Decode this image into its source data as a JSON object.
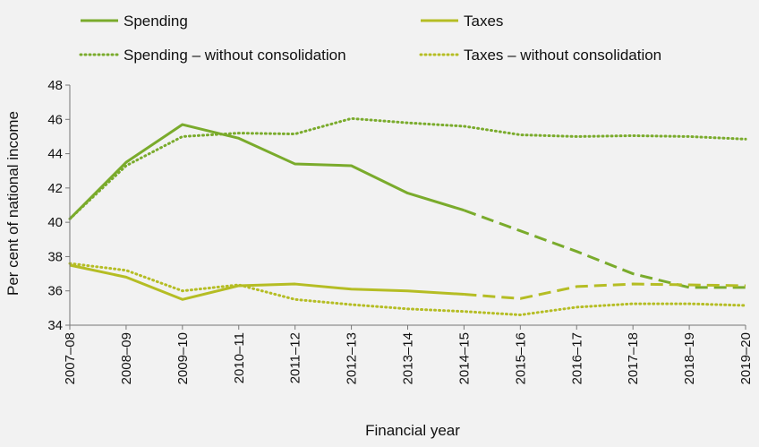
{
  "chart_data": {
    "type": "line",
    "title": "",
    "xlabel": "Financial year",
    "ylabel": "Per cent of national income",
    "ylim": [
      34,
      48
    ],
    "yticks": [
      "34",
      "36",
      "38",
      "40",
      "42",
      "44",
      "46",
      "48"
    ],
    "categories": [
      "2007–08",
      "2008–09",
      "2009–10",
      "2010–11",
      "2011–12",
      "2012–13",
      "2013–14",
      "2014–15",
      "2015–16",
      "2016–17",
      "2017–18",
      "2018–19",
      "2019–20"
    ],
    "grid": false,
    "legend_position": "top",
    "projection_start_index": 7,
    "series": [
      {
        "name": "Spending",
        "style": "solid-then-dashed",
        "color": "#7aab2c",
        "values": [
          40.2,
          43.5,
          45.7,
          44.9,
          43.4,
          43.3,
          41.7,
          40.7,
          39.5,
          38.3,
          37.0,
          36.2,
          36.2
        ]
      },
      {
        "name": "Taxes",
        "style": "solid-then-dashed",
        "color": "#b5bd24",
        "values": [
          37.5,
          36.8,
          35.5,
          36.3,
          36.4,
          36.1,
          36.0,
          35.8,
          35.55,
          36.25,
          36.4,
          36.35,
          36.3
        ]
      },
      {
        "name": "Spending – without consolidation",
        "style": "dotted",
        "color": "#7aab2c",
        "values": [
          40.2,
          43.3,
          45.0,
          45.2,
          45.15,
          46.05,
          45.8,
          45.6,
          45.1,
          45.0,
          45.05,
          45.0,
          44.85
        ]
      },
      {
        "name": "Taxes – without consolidation",
        "style": "dotted",
        "color": "#b5bd24",
        "values": [
          37.6,
          37.2,
          36.0,
          36.35,
          35.5,
          35.2,
          34.95,
          34.8,
          34.6,
          35.05,
          35.25,
          35.25,
          35.15
        ]
      }
    ]
  }
}
